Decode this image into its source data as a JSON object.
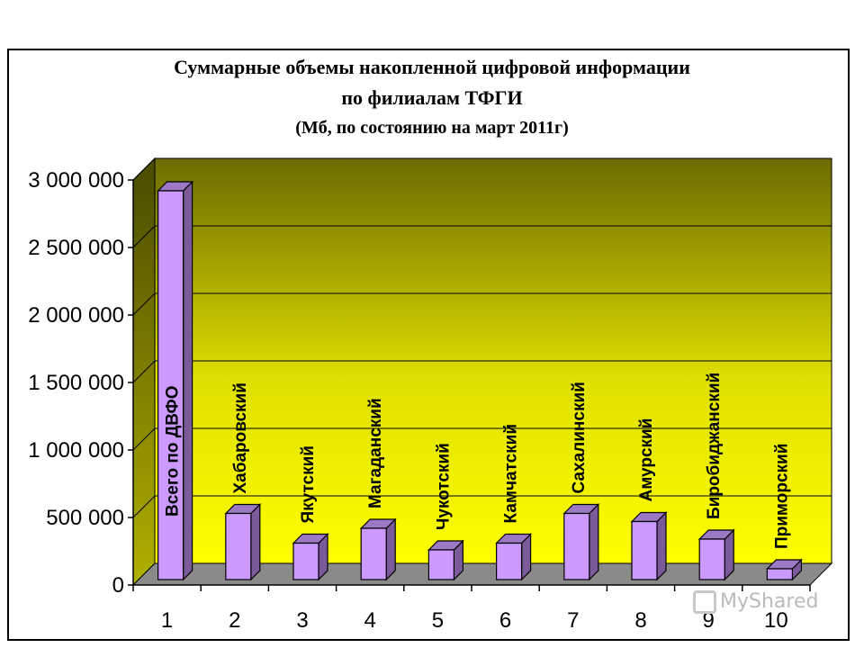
{
  "chart_data": {
    "type": "bar",
    "title": [
      "Суммарные объемы накопленной цифровой информации",
      "по филиалам ТФГИ",
      "(Мб,  по состоянию на март 2011г)"
    ],
    "categories": [
      "1",
      "2",
      "3",
      "4",
      "5",
      "6",
      "7",
      "8",
      "9",
      "10"
    ],
    "bar_labels": [
      "Всего по ДВФО",
      "Хабаровский",
      "Якутский",
      "Магаданский",
      "Чукотский",
      "Камчатский",
      "Сахалинский",
      "Амурский",
      "Биробиджанский",
      "Приморский"
    ],
    "values": [
      2880000,
      490000,
      270000,
      380000,
      220000,
      270000,
      490000,
      430000,
      300000,
      80000
    ],
    "ylim": [
      0,
      3000000
    ],
    "yticks": [
      0,
      500000,
      1000000,
      1500000,
      2000000,
      2500000,
      3000000
    ],
    "ytick_labels": [
      "0",
      "500 000",
      "1 000 000",
      "1 500 000",
      "2 000 000",
      "2 500 000",
      "3 000 000"
    ],
    "grid": true,
    "colors": {
      "bar_front": "#cc99ff",
      "bar_side": "#7a5a99",
      "bar_top": "#9c79c4",
      "wall_top": "#6b6b00",
      "wall_bottom": "#ffff00",
      "floor": "#8a8a8a"
    }
  },
  "watermark": "MyShared"
}
